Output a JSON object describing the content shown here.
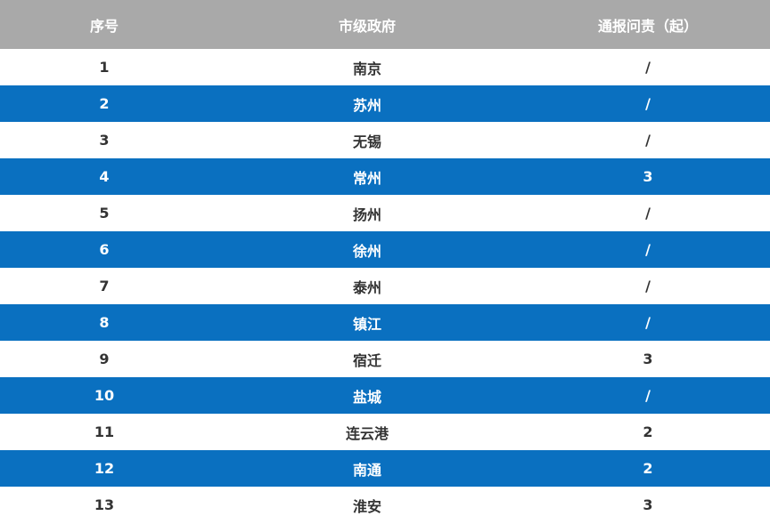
{
  "headers": [
    "序号",
    "市级政府",
    "通报问责（起）"
  ],
  "rows": [
    [
      "1",
      "南京",
      "/"
    ],
    [
      "2",
      "苏州",
      "/"
    ],
    [
      "3",
      "无锡",
      "/"
    ],
    [
      "4",
      "常州",
      "3"
    ],
    [
      "5",
      "扬州",
      "/"
    ],
    [
      "6",
      "徐州",
      "/"
    ],
    [
      "7",
      "泰州",
      "/"
    ],
    [
      "8",
      "镇江",
      "/"
    ],
    [
      "9",
      "宿迁",
      "3"
    ],
    [
      "10",
      "盐城",
      "/"
    ],
    [
      "11",
      "连云港",
      "2"
    ],
    [
      "12",
      "南通",
      "2"
    ],
    [
      "13",
      "淮安",
      "3"
    ]
  ],
  "colors": {
    "header_bg": "#a9a9a9",
    "alt_row_bg": "#0a70c0"
  }
}
